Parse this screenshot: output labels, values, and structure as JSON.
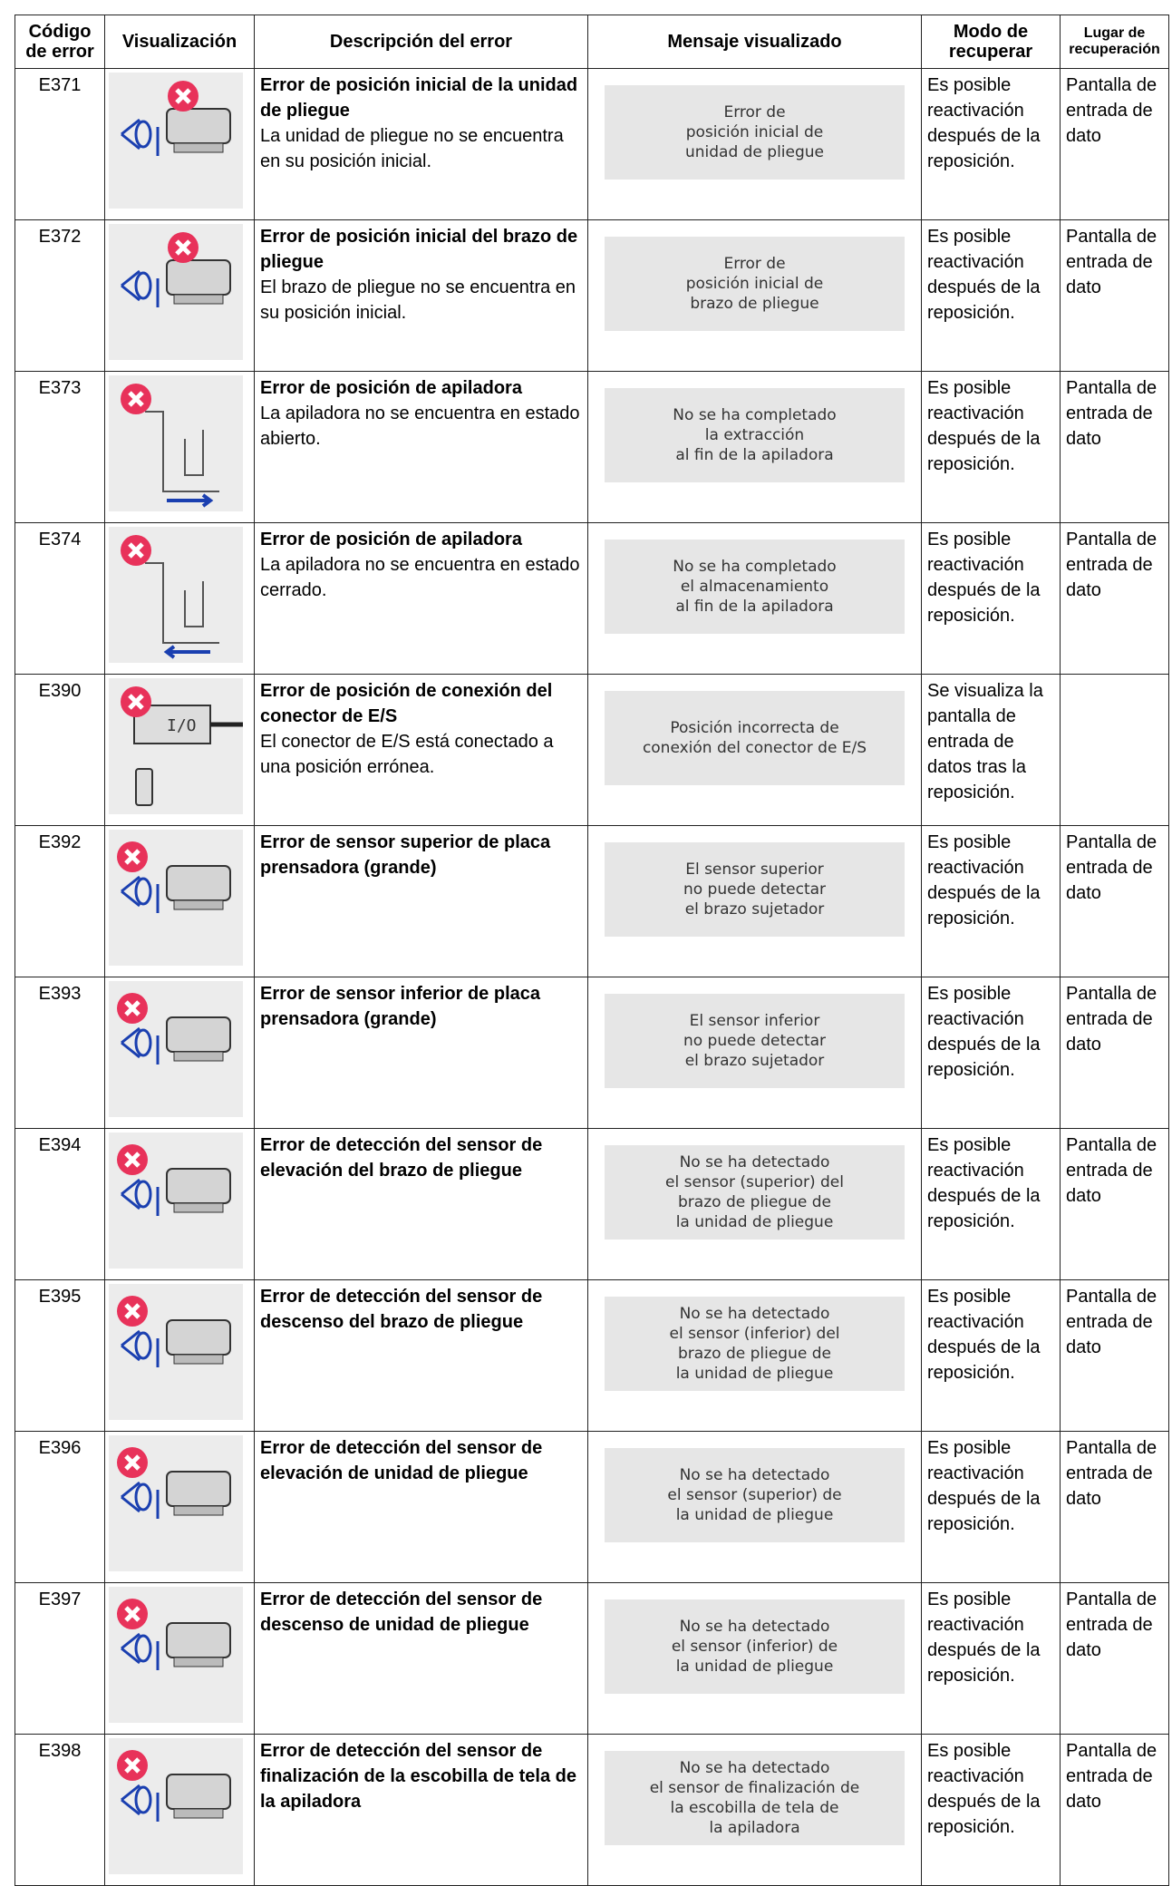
{
  "header": [
    "Código de error",
    "Visualización",
    "Descripción del error",
    "Mensaje visualizado",
    "Modo de recuperar",
    "Lugar de recuperación"
  ],
  "rows": [
    {
      "code": "E371",
      "title": "Error de posición inicial de la unidad de pliegue",
      "text": "La unidad de pliegue no se encuentra en su posición inicial.",
      "message": [
        "Error de",
        "posición inicial de",
        "unidad de pliegue"
      ],
      "recovery": "Es posible reactivación después de la reposición.",
      "place": "Pantalla de entrada de dato"
    },
    {
      "code": "E372",
      "title": "Error de posición inicial del brazo de pliegue",
      "text": "El brazo de pliegue no se encuentra en su posición inicial.",
      "message": [
        "Error de",
        "posición inicial de",
        "brazo de pliegue"
      ],
      "recovery": "Es posible reactivación después de la reposición.",
      "place": "Pantalla de entrada de dato"
    },
    {
      "code": "E373",
      "title": "Error de posición de apiladora",
      "text": "La apiladora no se encuentra en estado abierto.",
      "message": [
        "No se ha completado",
        "la extracción",
        "al fin de la apiladora"
      ],
      "recovery": "Es posible reactivación después de la reposición.",
      "place": "Pantalla de entrada de dato"
    },
    {
      "code": "E374",
      "title": "Error de posición de apiladora",
      "text": "La apiladora no se encuentra en estado cerrado.",
      "message": [
        "No se ha completado",
        "el almacenamiento",
        "al fin de la apiladora"
      ],
      "recovery": "Es posible reactivación después de la reposición.",
      "place": "Pantalla de entrada de dato"
    },
    {
      "code": "E390",
      "title": "Error de posición de conexión del conector de E/S",
      "text": "El conector de E/S está conectado a una posición errónea.",
      "message": [
        "Posición incorrecta de",
        "conexión del conector de E/S"
      ],
      "recovery": "Se visualiza la pantalla de entrada de datos tras la reposición."
    },
    {
      "code": "E392",
      "title": "Error de sensor superior de placa prensadora (grande)",
      "message": [
        "El sensor superior",
        "no puede detectar",
        "el brazo sujetador"
      ],
      "recovery": "Es posible reactivación después de la reposición.",
      "place": "Pantalla de entrada de dato"
    },
    {
      "code": "E393",
      "title": "Error de sensor inferior de placa prensadora (grande)",
      "message": [
        "El sensor inferior",
        "no puede detectar",
        "el brazo sujetador"
      ],
      "recovery": "Es posible reactivación después de la reposición.",
      "place": "Pantalla de entrada de dato"
    },
    {
      "code": "E394",
      "title": "Error de detección del sensor de elevación del brazo de pliegue",
      "message": [
        "No se ha detectado",
        "el sensor (superior) del",
        "brazo de pliegue de",
        "la unidad de pliegue"
      ],
      "recovery": "Es posible reactivación después de la reposición.",
      "place": "Pantalla de entrada de dato"
    },
    {
      "code": "E395",
      "title": "Error de detección del sensor de descenso del brazo de pliegue",
      "message": [
        "No se ha detectado",
        "el sensor (inferior) del",
        "brazo de pliegue de",
        "la unidad de pliegue"
      ],
      "recovery": "Es posible reactivación después de la reposición.",
      "place": "Pantalla de entrada de dato"
    },
    {
      "code": "E396",
      "title": "Error de detección del sensor de elevación de unidad de pliegue",
      "message": [
        "No se ha detectado",
        "el sensor (superior) de",
        "la unidad de pliegue"
      ],
      "recovery": "Es posible reactivación después de la reposición.",
      "place": "Pantalla de entrada de dato"
    },
    {
      "code": "E397",
      "title": "Error de detección del sensor de descenso de unidad de pliegue",
      "message": [
        "No se ha detectado",
        "el sensor (inferior) de",
        "la unidad de pliegue"
      ],
      "recovery": "Es posible reactivación después de la reposición.",
      "place": "Pantalla de entrada de dato"
    },
    {
      "code": "E398",
      "title": "Error de detección del sensor de finalización de la escobilla de tela de la apiladora",
      "message": [
        "No se ha detectado",
        "el sensor de finalización de",
        "la escobilla de tela de",
        "la apiladora"
      ],
      "recovery": "Es posible reactivación después de la reposición.",
      "place": "Pantalla de entrada de dato"
    }
  ]
}
